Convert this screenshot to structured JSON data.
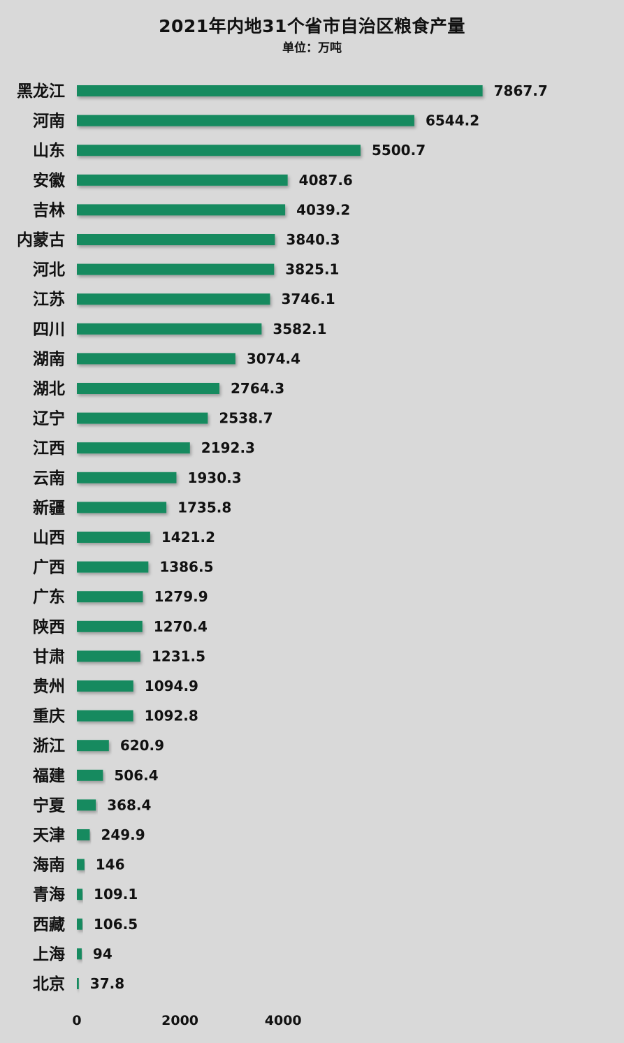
{
  "title": "2021年内地31个省市自治区粮食产量",
  "subtitle": "单位：万吨",
  "chart_data": {
    "type": "bar",
    "orientation": "horizontal",
    "title": "2021年内地31个省市自治区粮食产量",
    "subtitle": "单位：万吨",
    "categories": [
      "黑龙江",
      "河南",
      "山东",
      "安徽",
      "吉林",
      "内蒙古",
      "河北",
      "江苏",
      "四川",
      "湖南",
      "湖北",
      "辽宁",
      "江西",
      "云南",
      "新疆",
      "山西",
      "广西",
      "广东",
      "陕西",
      "甘肃",
      "贵州",
      "重庆",
      "浙江",
      "福建",
      "宁夏",
      "天津",
      "海南",
      "青海",
      "西藏",
      "上海",
      "北京"
    ],
    "values": [
      7867.7,
      6544.2,
      5500.7,
      4087.6,
      4039.2,
      3840.3,
      3825.1,
      3746.1,
      3582.1,
      3074.4,
      2764.3,
      2538.7,
      2192.3,
      1930.3,
      1735.8,
      1421.2,
      1386.5,
      1279.9,
      1270.4,
      1231.5,
      1094.9,
      1092.8,
      620.9,
      506.4,
      368.4,
      249.9,
      146,
      109.1,
      106.5,
      94,
      37.8
    ],
    "value_labels": [
      "7867.7",
      "6544.2",
      "5500.7",
      "4087.6",
      "4039.2",
      "3840.3",
      "3825.1",
      "3746.1",
      "3582.1",
      "3074.4",
      "2764.3",
      "2538.7",
      "2192.3",
      "1930.3",
      "1735.8",
      "1421.2",
      "1386.5",
      "1279.9",
      "1270.4",
      "1231.5",
      "1094.9",
      "1092.8",
      "620.9",
      "506.4",
      "368.4",
      "249.9",
      "146",
      "109.1",
      "106.5",
      "94",
      "37.8"
    ],
    "x_ticks": [
      0,
      2000,
      4000
    ],
    "x_tick_labels": [
      "0",
      "2000",
      "4000"
    ],
    "bar_color": "#178a5e",
    "grid": false,
    "legend": "none"
  }
}
